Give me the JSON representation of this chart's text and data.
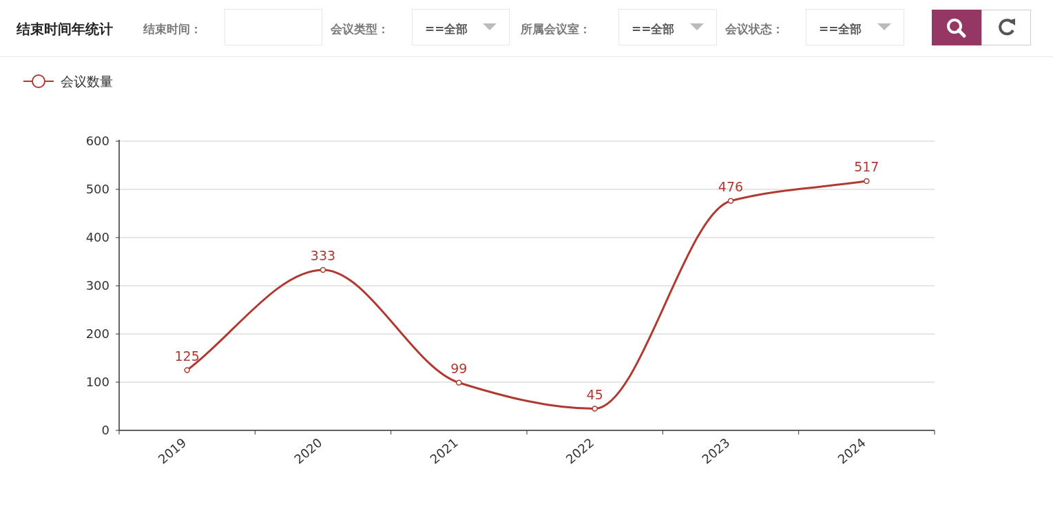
{
  "chart_data": {
    "type": "line",
    "title": "结束时间年统计",
    "annotations": [
      "结束时间：",
      "会议类型：",
      "==全部",
      "所属会议室：",
      "==全部",
      "会议状态：",
      "==全部"
    ],
    "categories": [
      "2019",
      "2020",
      "2021",
      "2022",
      "2023",
      "2024"
    ],
    "series": [
      {
        "name": "会议数量",
        "color": "#b03a32",
        "values": [
          125,
          333,
          99,
          45,
          476,
          517
        ]
      }
    ],
    "ylim": [
      0,
      600
    ],
    "yticks": [
      0,
      100,
      200,
      300,
      400,
      500,
      600
    ],
    "grid": "y",
    "legend": "top left",
    "marker": "circle",
    "data_labels": true
  }
}
